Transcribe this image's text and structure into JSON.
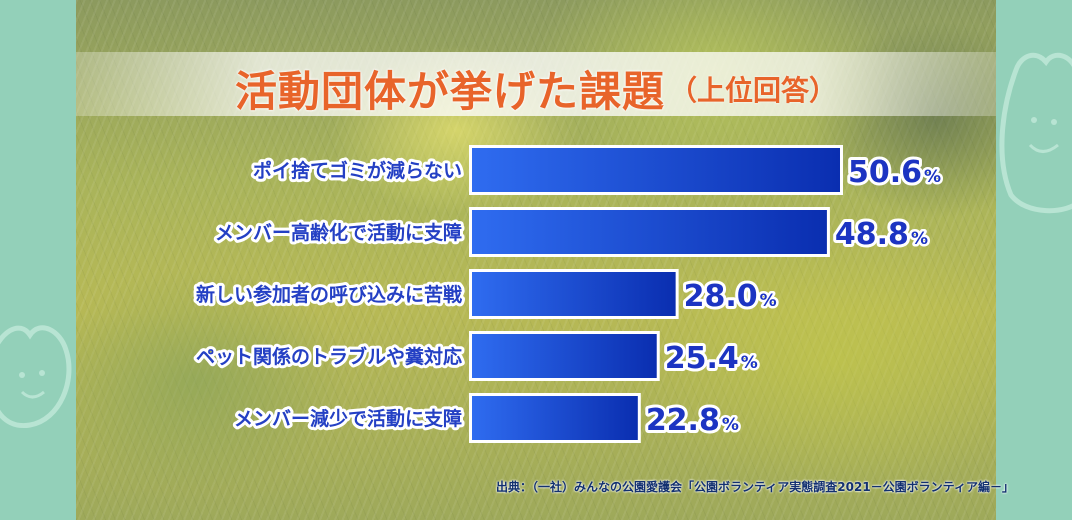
{
  "title": {
    "main": "活動団体が挙げた課題",
    "sub": "（上位回答）"
  },
  "source": "出典：（一社）みんなの公園愛護会「公園ボランティア実態調査2021－公園ボランティア編－」",
  "colors": {
    "title": "#e8642a",
    "bar_light": "#2f6cf0",
    "bar_dark": "#0a2eb0",
    "label": "#2440c4",
    "value": "#1c34c2"
  },
  "chart_data": {
    "type": "bar",
    "orientation": "horizontal",
    "title": "活動団体が挙げた課題（上位回答）",
    "categories": [
      "ポイ捨てゴミが減らない",
      "メンバー高齢化で活動に支障",
      "新しい参加者の呼び込みに苦戦",
      "ペット関係のトラブルや糞対応",
      "メンバー減少で活動に支障"
    ],
    "values": [
      50.6,
      48.8,
      28.0,
      25.4,
      22.8
    ],
    "value_labels": [
      "50.6",
      "48.8",
      "28.0",
      "25.4",
      "22.8"
    ],
    "unit": "%",
    "xlabel": "",
    "ylabel": "",
    "xlim": [
      0,
      50.6
    ],
    "grid": false,
    "legend": "none"
  }
}
